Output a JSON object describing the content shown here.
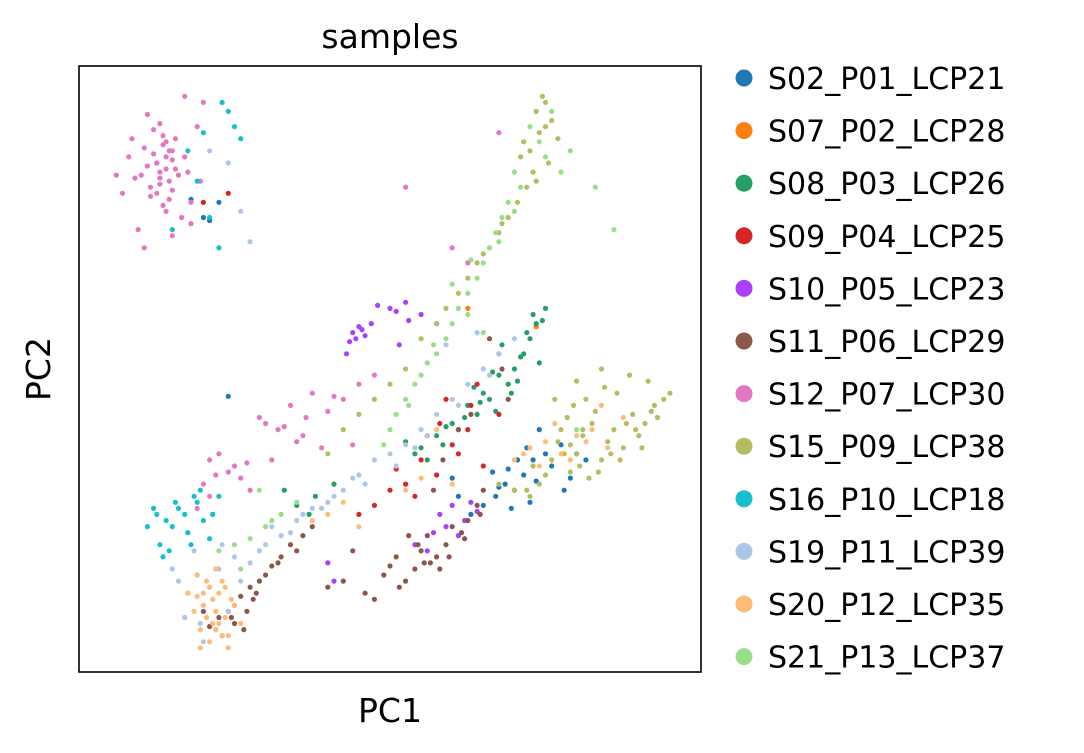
{
  "chart_data": {
    "type": "scatter",
    "title": "samples",
    "xlabel": "PC1",
    "ylabel": "PC2",
    "xlim": [
      -1.0,
      1.0
    ],
    "ylim": [
      -1.0,
      1.0
    ],
    "ticks": "none",
    "grid": false,
    "legend_position": "right",
    "series": [
      {
        "name": "S02_P01_LCP21",
        "color": "#1f77b4",
        "x": [
          0.37,
          0.4,
          0.43,
          0.46,
          0.5,
          0.34,
          0.3,
          0.26,
          0.52,
          0.55,
          0.58,
          0.45,
          0.41,
          -0.55,
          -0.6,
          -0.64,
          -0.58,
          0.2,
          0.22,
          0.6,
          0.63,
          0.48,
          0.38,
          0.35,
          -0.52,
          0.44,
          0.56,
          0.33,
          0.39,
          0.47
        ],
        "y": [
          -0.38,
          -0.4,
          -0.35,
          -0.3,
          -0.28,
          -0.42,
          -0.45,
          -0.48,
          -0.32,
          -0.25,
          -0.36,
          -0.44,
          -0.3,
          0.55,
          0.5,
          0.56,
          0.49,
          -0.36,
          -0.42,
          -0.28,
          -0.3,
          -0.2,
          -0.33,
          -0.39,
          -0.09,
          -0.26,
          -0.4,
          -0.34,
          -0.46,
          -0.37
        ]
      },
      {
        "name": "S07_P02_LCP28",
        "color": "#ff7f0e",
        "x": [
          0.25,
          -0.6,
          0.47
        ],
        "y": [
          0.2,
          0.55,
          0.14
        ]
      },
      {
        "name": "S08_P03_LCP26",
        "color": "#279e68",
        "x": [
          0.43,
          0.45,
          0.47,
          0.5,
          0.48,
          0.4,
          0.38,
          0.35,
          0.32,
          0.3,
          0.28,
          0.25,
          0.22,
          0.2,
          0.17,
          0.15,
          0.12,
          0.1,
          0.36,
          0.44,
          0.41,
          0.46,
          0.39,
          0.34,
          0.27,
          -0.34,
          -0.3,
          -0.24,
          -0.18,
          0.08,
          0.05,
          0.42,
          0.49,
          0.33,
          0.24,
          0.18,
          -0.26,
          0.29
        ],
        "y": [
          0.05,
          0.1,
          0.15,
          0.2,
          0.02,
          0.0,
          -0.05,
          -0.02,
          -0.1,
          -0.08,
          -0.15,
          -0.12,
          -0.2,
          -0.18,
          -0.25,
          -0.22,
          -0.3,
          -0.26,
          0.08,
          0.12,
          -0.04,
          0.18,
          -0.08,
          -0.14,
          -0.06,
          -0.4,
          -0.45,
          -0.42,
          -0.38,
          -0.28,
          -0.24,
          0.04,
          0.16,
          -0.01,
          -0.16,
          -0.19,
          -0.48,
          -0.11
        ]
      },
      {
        "name": "S09_P04_LCP25",
        "color": "#d62728",
        "x": [
          0.1,
          0.15,
          0.2,
          0.25,
          0.3,
          0.05,
          0.0,
          -0.05,
          0.35,
          0.18,
          0.12,
          0.28,
          0.22,
          -0.1,
          0.08,
          0.02,
          -0.6,
          -0.52,
          0.26,
          0.16
        ],
        "y": [
          -0.3,
          -0.35,
          -0.25,
          -0.2,
          -0.32,
          -0.38,
          -0.4,
          -0.45,
          -0.15,
          -0.1,
          -0.22,
          -0.05,
          -0.28,
          -0.48,
          -0.42,
          -0.33,
          0.55,
          0.58,
          -0.12,
          -0.18
        ]
      },
      {
        "name": "S10_P05_LCP23",
        "color": "#aa40fc",
        "x": [
          -0.12,
          -0.1,
          -0.08,
          -0.06,
          -0.11,
          -0.09,
          -0.13,
          0.0,
          0.05,
          0.1,
          0.15,
          0.2,
          0.24,
          0.22,
          0.12,
          0.08,
          0.18,
          0.28,
          -0.2,
          -0.18,
          0.02,
          0.06,
          0.16,
          0.26,
          0.14,
          -0.14,
          0.03,
          -0.04
        ],
        "y": [
          0.12,
          0.14,
          0.11,
          0.15,
          0.1,
          0.13,
          0.09,
          0.2,
          0.22,
          0.18,
          0.15,
          -0.45,
          -0.5,
          -0.55,
          -0.6,
          -0.58,
          -0.52,
          -0.47,
          -0.64,
          -0.7,
          0.19,
          0.16,
          -0.48,
          -0.44,
          -0.54,
          0.05,
          0.08,
          0.21
        ]
      },
      {
        "name": "S11_P06_LCP29",
        "color": "#8c564b",
        "x": [
          -0.55,
          -0.58,
          -0.52,
          -0.5,
          -0.48,
          -0.45,
          -0.42,
          -0.38,
          -0.35,
          -0.32,
          -0.28,
          -0.25,
          -0.54,
          -0.5,
          -0.46,
          -0.47,
          -0.43,
          -0.4,
          0.0,
          0.05,
          0.1,
          0.12,
          0.15,
          0.18,
          0.2,
          0.25,
          0.28,
          0.3,
          0.08,
          0.03,
          -0.02,
          -0.08,
          -0.12,
          -0.15,
          0.14,
          0.17,
          0.22,
          0.06,
          0.26,
          0.32,
          0.35,
          0.38,
          0.36,
          -0.6,
          -0.56,
          -0.51,
          -0.44,
          -0.36,
          -0.3,
          -0.2,
          0.11,
          0.19,
          0.24,
          -0.05,
          0.09,
          0.16,
          0.23,
          0.29,
          0.02,
          0.13
        ],
        "y": [
          -0.82,
          -0.85,
          -0.8,
          -0.78,
          -0.75,
          -0.72,
          -0.7,
          -0.65,
          -0.62,
          -0.58,
          -0.55,
          -0.52,
          -0.88,
          -0.84,
          -0.8,
          -0.86,
          -0.74,
          -0.68,
          -0.65,
          -0.7,
          -0.6,
          -0.55,
          -0.62,
          -0.58,
          -0.52,
          -0.5,
          -0.45,
          -0.4,
          -0.66,
          -0.72,
          -0.68,
          -0.74,
          -0.6,
          -0.7,
          -0.4,
          -0.3,
          -0.2,
          -0.55,
          -0.15,
          0.1,
          0.05,
          -0.1,
          0.0,
          -0.8,
          -0.86,
          -0.82,
          -0.76,
          -0.64,
          -0.6,
          -0.72,
          -0.64,
          -0.62,
          -0.56,
          -0.76,
          -0.58,
          -0.66,
          -0.54,
          -0.48,
          -0.62,
          -0.64
        ]
      },
      {
        "name": "S12_P07_LCP30",
        "color": "#e377c2",
        "x": [
          -0.75,
          -0.72,
          -0.74,
          -0.7,
          -0.78,
          -0.73,
          -0.71,
          -0.76,
          -0.69,
          -0.77,
          -0.72,
          -0.74,
          -0.7,
          -0.75,
          -0.73,
          -0.68,
          -0.79,
          -0.71,
          -0.76,
          -0.74,
          -0.72,
          -0.7,
          -0.66,
          -0.8,
          -0.73,
          -0.75,
          -0.69,
          -0.77,
          -0.71,
          -0.74,
          -0.72,
          -0.82,
          -0.84,
          -0.64,
          -0.62,
          -0.86,
          -0.67,
          -0.78,
          -0.81,
          -0.65,
          -0.6,
          -0.88,
          -0.58,
          -0.52,
          -0.48,
          -0.6,
          -0.58,
          -0.55,
          -0.5,
          -0.45,
          -0.62,
          -0.4,
          -0.36,
          -0.32,
          -0.28,
          -0.25,
          -0.2,
          -0.15,
          -0.22,
          -0.3,
          -0.38,
          -0.42,
          -0.1,
          -0.05,
          0.2,
          0.25,
          0.05,
          0.35,
          -0.12,
          -0.56,
          -0.46,
          -0.34,
          -0.27,
          -0.18,
          -0.64,
          -0.7,
          -0.83,
          -0.66,
          -0.79,
          -0.61
        ],
        "y": [
          0.68,
          0.7,
          0.65,
          0.72,
          0.67,
          0.74,
          0.62,
          0.71,
          0.66,
          0.6,
          0.75,
          0.63,
          0.69,
          0.58,
          0.77,
          0.64,
          0.73,
          0.56,
          0.79,
          0.61,
          0.66,
          0.59,
          0.7,
          0.64,
          0.54,
          0.68,
          0.76,
          0.57,
          0.72,
          0.81,
          0.52,
          0.63,
          0.7,
          0.55,
          0.8,
          0.58,
          0.5,
          0.84,
          0.46,
          0.65,
          0.88,
          0.64,
          -0.3,
          -0.34,
          -0.36,
          -0.38,
          -0.42,
          -0.28,
          -0.32,
          -0.4,
          -0.46,
          -0.18,
          -0.2,
          -0.12,
          -0.22,
          -0.08,
          -0.14,
          -0.1,
          -0.26,
          -0.24,
          -0.3,
          -0.16,
          -0.05,
          -0.02,
          0.4,
          0.35,
          0.6,
          0.78,
          -0.25,
          -0.35,
          -0.31,
          -0.19,
          -0.16,
          -0.09,
          0.48,
          0.44,
          0.76,
          0.9,
          0.4,
          0.62
        ]
      },
      {
        "name": "S15_P09_LCP38",
        "color": "#b5bd61",
        "x": [
          0.55,
          0.58,
          0.6,
          0.62,
          0.65,
          0.68,
          0.7,
          0.72,
          0.75,
          0.78,
          0.8,
          0.82,
          0.85,
          0.88,
          0.9,
          0.52,
          0.5,
          0.48,
          0.46,
          0.44,
          0.57,
          0.61,
          0.66,
          0.71,
          0.76,
          0.81,
          0.86,
          0.63,
          0.69,
          0.74,
          0.59,
          0.54,
          0.67,
          0.73,
          0.79,
          0.84,
          0.53,
          0.6,
          0.64,
          0.56,
          0.62,
          0.58,
          0.45,
          0.4,
          0.35,
          0.5,
          0.47,
          0.43,
          0.42,
          0.45,
          0.48,
          0.5,
          0.46,
          0.44,
          0.41,
          0.38,
          0.35,
          0.32,
          0.28,
          0.25,
          0.22,
          0.18,
          0.15,
          0.1,
          0.05,
          0.0,
          -0.05,
          -0.1,
          0.52,
          0.54,
          0.49,
          0.51,
          0.47,
          -0.15,
          -0.2,
          0.3,
          0.36,
          0.77,
          0.83,
          0.68
        ],
        "y": [
          -0.2,
          -0.25,
          -0.28,
          -0.22,
          -0.18,
          -0.3,
          -0.24,
          -0.2,
          -0.26,
          -0.15,
          -0.22,
          -0.18,
          -0.12,
          -0.1,
          -0.08,
          -0.3,
          -0.35,
          -0.38,
          -0.32,
          -0.4,
          -0.16,
          -0.32,
          -0.14,
          -0.28,
          -0.18,
          -0.26,
          -0.16,
          -0.1,
          -0.06,
          -0.3,
          -0.12,
          -0.24,
          -0.34,
          -0.08,
          -0.2,
          -0.14,
          -0.1,
          -0.04,
          -0.36,
          -0.28,
          -0.2,
          -0.34,
          -0.42,
          -0.4,
          -0.38,
          0.8,
          0.85,
          0.75,
          0.7,
          0.72,
          0.78,
          0.88,
          0.65,
          0.6,
          0.55,
          0.5,
          0.45,
          0.4,
          0.35,
          0.3,
          0.25,
          0.2,
          0.15,
          0.1,
          0.0,
          -0.05,
          -0.1,
          -0.15,
          0.82,
          0.76,
          0.9,
          0.68,
          0.62,
          -0.2,
          -0.28,
          0.38,
          0.48,
          -0.02,
          -0.04,
          0.0
        ]
      },
      {
        "name": "S16_P10_LCP18",
        "color": "#17becf",
        "x": [
          -0.75,
          -0.72,
          -0.7,
          -0.68,
          -0.65,
          -0.62,
          -0.6,
          -0.58,
          -0.78,
          -0.74,
          -0.66,
          -0.63,
          -0.71,
          -0.69,
          -0.76,
          -0.61,
          -0.57,
          -0.55,
          -0.73,
          -0.64,
          -0.54,
          -0.52,
          -0.5,
          -0.6,
          -0.65,
          -0.58,
          -0.62,
          -0.55,
          -0.48,
          -0.7
        ],
        "y": [
          -0.48,
          -0.5,
          -0.52,
          -0.46,
          -0.54,
          -0.44,
          -0.5,
          -0.56,
          -0.52,
          -0.58,
          -0.48,
          -0.42,
          -0.6,
          -0.44,
          -0.46,
          -0.4,
          -0.48,
          -0.42,
          -0.62,
          -0.58,
          0.88,
          0.85,
          0.8,
          0.78,
          0.72,
          0.5,
          0.62,
          0.4,
          0.76,
          0.46
        ]
      },
      {
        "name": "S19_P11_LCP39",
        "color": "#aec7e8",
        "x": [
          -0.68,
          -0.65,
          -0.62,
          -0.6,
          -0.58,
          -0.55,
          -0.52,
          -0.5,
          -0.48,
          -0.45,
          -0.66,
          -0.63,
          -0.57,
          -0.54,
          -0.7,
          -0.61,
          -0.4,
          -0.35,
          -0.3,
          -0.25,
          -0.2,
          -0.15,
          -0.1,
          -0.05,
          0.0,
          0.05,
          0.1,
          0.15,
          0.2,
          0.25,
          0.3,
          0.35,
          0.4,
          -0.38,
          -0.28,
          -0.18,
          -0.08,
          0.02,
          0.12,
          0.22,
          0.32,
          -0.42,
          -0.32,
          -0.22,
          -0.12,
          0.08,
          -0.58,
          -0.52,
          -0.48,
          -0.45,
          0.18,
          0.28,
          -0.6,
          -0.56
        ],
        "y": [
          -0.7,
          -0.74,
          -0.68,
          -0.78,
          -0.72,
          -0.66,
          -0.8,
          -0.62,
          -0.7,
          -0.64,
          -0.82,
          -0.6,
          -0.76,
          -0.58,
          -0.66,
          -0.84,
          -0.58,
          -0.55,
          -0.5,
          -0.46,
          -0.44,
          -0.4,
          -0.35,
          -0.3,
          -0.28,
          -0.25,
          -0.2,
          -0.15,
          -0.1,
          -0.05,
          0.0,
          0.05,
          0.1,
          -0.52,
          -0.48,
          -0.42,
          -0.38,
          -0.32,
          -0.22,
          -0.12,
          -0.02,
          -0.6,
          -0.54,
          -0.46,
          -0.36,
          -0.26,
          0.72,
          0.68,
          0.52,
          0.42,
          0.08,
          0.12,
          -0.9,
          -0.86
        ]
      },
      {
        "name": "S20_P12_LCP35",
        "color": "#ffbb78",
        "x": [
          -0.62,
          -0.6,
          -0.58,
          -0.56,
          -0.55,
          -0.53,
          -0.51,
          -0.59,
          -0.57,
          -0.61,
          -0.54,
          -0.52,
          -0.63,
          -0.58,
          -0.56,
          -0.6,
          -0.5,
          -0.55,
          -0.62,
          -0.57,
          -0.53,
          -0.59,
          -0.54,
          -0.61,
          -0.48,
          -0.65,
          -0.56,
          -0.52,
          0.4,
          0.45,
          0.5,
          0.55,
          0.6,
          0.65,
          0.7,
          0.75,
          0.48,
          0.53,
          0.58,
          0.63,
          0.68,
          0.43,
          -0.25,
          -0.2,
          -0.15,
          -0.1,
          0.05,
          0.1,
          0.15,
          0.2
        ],
        "y": [
          -0.75,
          -0.78,
          -0.72,
          -0.8,
          -0.74,
          -0.82,
          -0.76,
          -0.7,
          -0.84,
          -0.86,
          -0.7,
          -0.88,
          -0.8,
          -0.9,
          -0.66,
          -0.74,
          -0.78,
          -0.84,
          -0.68,
          -0.76,
          -0.72,
          -0.82,
          -0.88,
          -0.92,
          -0.84,
          -0.74,
          -0.86,
          -0.92,
          -0.3,
          -0.26,
          -0.24,
          -0.28,
          -0.22,
          -0.2,
          -0.26,
          -0.16,
          -0.32,
          -0.18,
          -0.3,
          -0.24,
          -0.12,
          -0.28,
          -0.5,
          -0.48,
          -0.44,
          -0.52,
          -0.4,
          -0.36,
          -0.2,
          -0.38
        ]
      },
      {
        "name": "S21_P13_LCP37",
        "color": "#98df8a",
        "x": [
          0.4,
          0.42,
          0.38,
          0.36,
          0.34,
          0.32,
          0.3,
          0.28,
          0.25,
          0.22,
          0.2,
          0.18,
          0.15,
          0.12,
          0.1,
          0.08,
          0.05,
          0.02,
          0.0,
          -0.02,
          0.45,
          0.48,
          0.5,
          0.52,
          0.55,
          0.58,
          0.35,
          0.4,
          0.3,
          0.25,
          -0.45,
          -0.4,
          -0.35,
          -0.3,
          -0.55,
          -0.5,
          -0.48,
          0.6,
          0.66,
          0.72,
          0.14,
          0.2,
          0.26,
          0.06,
          -0.38,
          -0.42
        ],
        "y": [
          0.65,
          0.6,
          0.55,
          0.5,
          0.45,
          0.4,
          0.35,
          0.3,
          0.25,
          0.2,
          0.15,
          0.1,
          0.05,
          0.02,
          -0.02,
          -0.05,
          -0.1,
          -0.15,
          -0.2,
          -0.25,
          0.8,
          0.75,
          0.7,
          0.85,
          0.65,
          0.72,
          0.42,
          0.52,
          0.12,
          0.18,
          -0.56,
          -0.52,
          -0.48,
          -0.44,
          -0.6,
          -0.58,
          -0.66,
          -0.2,
          0.6,
          0.46,
          0.08,
          0.28,
          0.36,
          -0.12,
          -0.5,
          -0.4
        ]
      }
    ]
  }
}
